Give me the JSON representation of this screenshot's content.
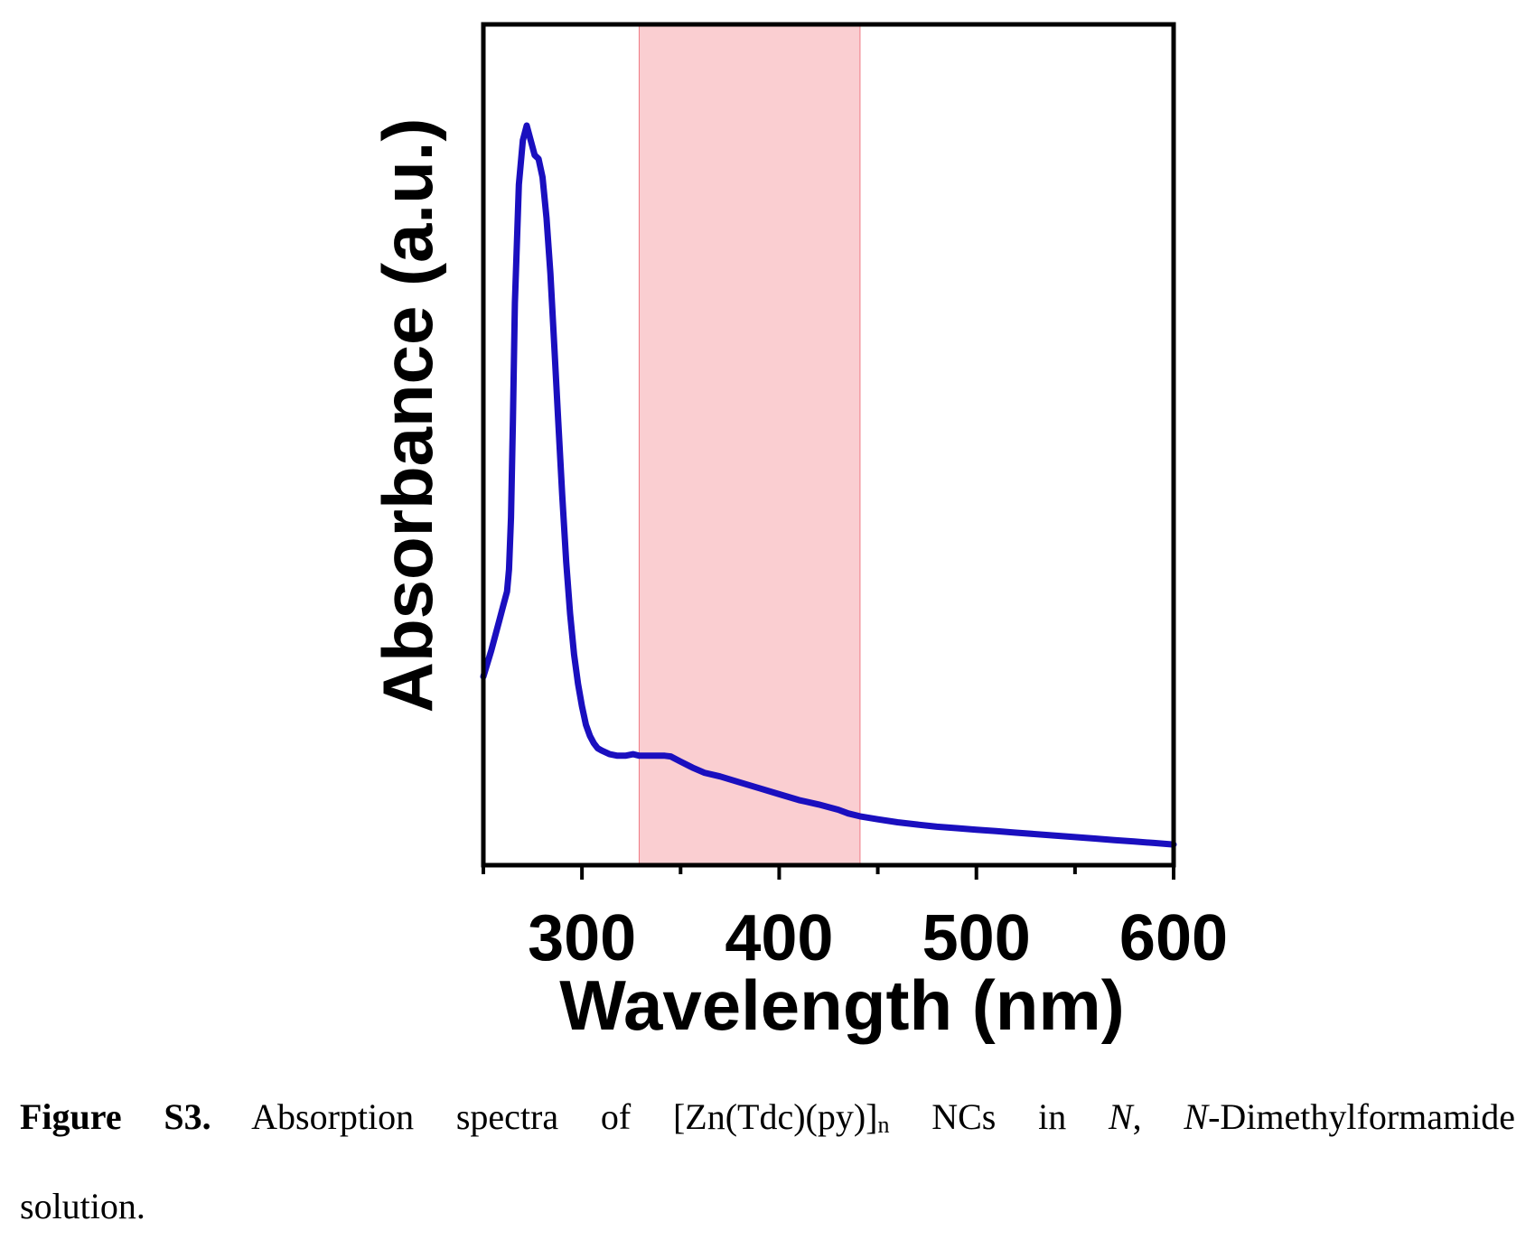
{
  "chart_data": {
    "type": "line",
    "xlabel": "Wavelength (nm)",
    "ylabel": "Absorbance (a.u.)",
    "xlim": [
      250,
      600
    ],
    "ylim": [
      0,
      1
    ],
    "x_ticks": [
      300,
      400,
      500,
      600
    ],
    "x_ticklabels": [
      "300",
      "400",
      "500",
      "600"
    ],
    "y_ticks_shown": false,
    "grid": false,
    "line_color": "#1a0fbf",
    "highlight": {
      "x_range": [
        329,
        441
      ],
      "color": "#f8b4b9"
    },
    "series": [
      {
        "x": [
          250,
          254,
          258,
          260,
          262,
          263,
          264,
          265,
          266,
          268,
          270,
          272,
          274,
          276,
          278,
          280,
          282,
          284,
          286,
          288,
          290,
          292,
          294,
          296,
          298,
          300,
          302,
          304,
          306,
          308,
          310,
          314,
          318,
          322,
          326,
          329,
          335,
          342,
          345,
          350,
          356,
          362,
          370,
          380,
          390,
          400,
          410,
          420,
          430,
          435,
          441,
          450,
          460,
          470,
          480,
          490,
          500,
          510,
          520,
          530,
          540,
          550,
          560,
          570,
          580,
          590,
          600
        ],
        "y": [
          0.255,
          0.29,
          0.33,
          0.35,
          0.37,
          0.4,
          0.47,
          0.6,
          0.76,
          0.92,
          0.98,
          1.0,
          0.98,
          0.96,
          0.955,
          0.93,
          0.875,
          0.8,
          0.7,
          0.6,
          0.5,
          0.41,
          0.34,
          0.285,
          0.245,
          0.215,
          0.19,
          0.175,
          0.165,
          0.158,
          0.155,
          0.15,
          0.148,
          0.148,
          0.15,
          0.148,
          0.148,
          0.148,
          0.147,
          0.14,
          0.132,
          0.125,
          0.12,
          0.112,
          0.104,
          0.096,
          0.088,
          0.082,
          0.075,
          0.07,
          0.066,
          0.062,
          0.058,
          0.055,
          0.052,
          0.05,
          0.048,
          0.046,
          0.044,
          0.042,
          0.04,
          0.038,
          0.036,
          0.034,
          0.032,
          0.03,
          0.028
        ]
      }
    ]
  },
  "caption": {
    "label": "Figure S3.",
    "text_1": " Absorption spectra of [Zn(Tdc)(py)]",
    "subscript": "n",
    "text_2": " NCs in ",
    "italic_1": "N",
    "text_3": ", ",
    "italic_2": "N",
    "text_4": "-Dimethylformamide",
    "text_5": "solution."
  }
}
